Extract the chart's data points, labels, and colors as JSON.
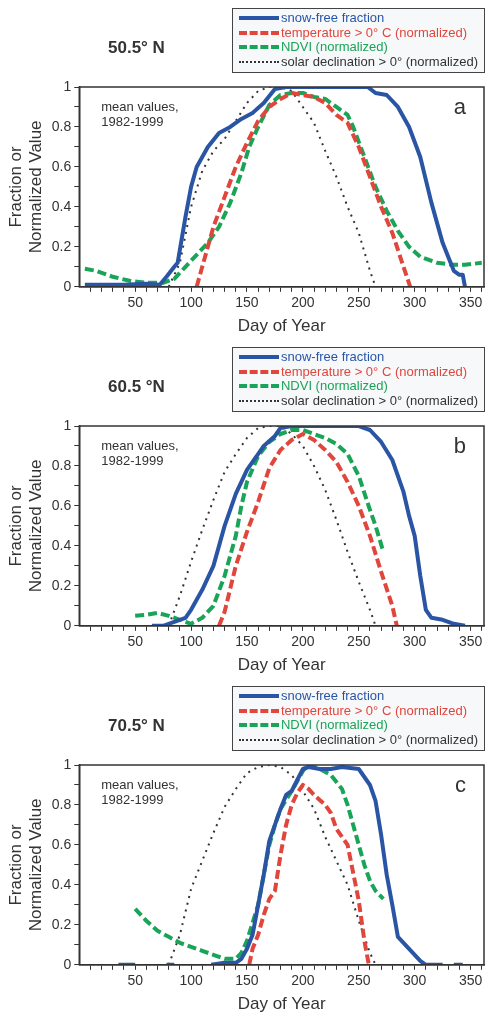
{
  "chart_data": [
    {
      "type": "line",
      "title": "50.5° N",
      "xlabel": "Day of Year",
      "ylabel": "Fraction or\nNormalized Value",
      "legend": "top right",
      "marker": "none",
      "grid": false,
      "xlim": [
        0,
        362
      ],
      "xticks": [
        {
          "value": 10,
          "label": null
        },
        {
          "value": 20,
          "label": null
        },
        {
          "value": 30,
          "label": null
        },
        {
          "value": 40,
          "label": null
        },
        50,
        {
          "value": 60,
          "label": null
        },
        {
          "value": 70,
          "label": null
        },
        {
          "value": 80,
          "label": null
        },
        {
          "value": 90,
          "label": null
        },
        100,
        {
          "value": 110,
          "label": null
        },
        {
          "value": 120,
          "label": null
        },
        {
          "value": 130,
          "label": null
        },
        {
          "value": 140,
          "label": null
        },
        150,
        {
          "value": 160,
          "label": null
        },
        {
          "value": 170,
          "label": null
        },
        {
          "value": 180,
          "label": null
        },
        {
          "value": 190,
          "label": null
        },
        200,
        {
          "value": 210,
          "label": null
        },
        {
          "value": 220,
          "label": null
        },
        {
          "value": 230,
          "label": null
        },
        {
          "value": 240,
          "label": null
        },
        250,
        {
          "value": 260,
          "label": null
        },
        {
          "value": 270,
          "label": null
        },
        {
          "value": 280,
          "label": null
        },
        {
          "value": 290,
          "label": null
        },
        300,
        {
          "value": 310,
          "label": null
        },
        {
          "value": 320,
          "label": null
        },
        {
          "value": 330,
          "label": null
        },
        {
          "value": 340,
          "label": null
        },
        350,
        {
          "value": 360,
          "label": null
        }
      ],
      "ylim": [
        0,
        1
      ],
      "yticks": [
        0,
        {
          "value": 0.1,
          "label": null
        },
        0.2,
        {
          "value": 0.3,
          "label": null
        },
        0.4,
        {
          "value": 0.5,
          "label": null
        },
        0.6,
        {
          "value": 0.7,
          "label": null
        },
        0.8,
        {
          "value": 0.9,
          "label": null
        },
        1
      ],
      "annotations": [
        "mean values,\n1982-1999",
        "a"
      ],
      "series": [
        {
          "name": "snow-free fraction",
          "color": "#2a55a5",
          "line_style": "solid",
          "x": [
            5,
            20,
            40,
            60,
            72,
            78,
            85,
            88,
            95,
            100,
            105,
            115,
            125,
            135,
            145,
            155,
            165,
            175,
            185,
            200,
            250,
            258,
            265,
            275,
            285,
            295,
            305,
            315,
            325,
            335,
            340,
            343,
            345
          ],
          "values": [
            0.01,
            0.01,
            0.01,
            0.015,
            0.01,
            0.05,
            0.1,
            0.12,
            0.35,
            0.5,
            0.6,
            0.7,
            0.77,
            0.8,
            0.84,
            0.87,
            0.92,
            0.99,
            1,
            1,
            1,
            1,
            0.97,
            0.96,
            0.9,
            0.8,
            0.65,
            0.42,
            0.22,
            0.08,
            0.06,
            0.06,
            0
          ]
        },
        {
          "name": "temperature > 0° C (normalized)",
          "color": "#e0463c",
          "line_style": "dashed",
          "x": [
            105,
            110,
            120,
            130,
            140,
            150,
            160,
            170,
            180,
            190,
            200,
            210,
            220,
            230,
            240,
            250,
            260,
            270,
            280,
            290,
            296
          ],
          "values": [
            0,
            0.1,
            0.3,
            0.45,
            0.6,
            0.72,
            0.83,
            0.9,
            0.94,
            0.97,
            0.96,
            0.95,
            0.92,
            0.86,
            0.82,
            0.7,
            0.55,
            0.4,
            0.27,
            0.1,
            0
          ]
        },
        {
          "name": "NDVI (normalized)",
          "color": "#1aa457",
          "line_style": "dashed",
          "x": [
            5,
            15,
            30,
            45,
            60,
            75,
            85,
            95,
            105,
            115,
            125,
            135,
            145,
            152,
            160,
            170,
            180,
            190,
            200,
            210,
            220,
            230,
            240,
            245,
            255,
            265,
            275,
            285,
            295,
            305,
            320,
            335,
            345,
            360
          ],
          "values": [
            0.09,
            0.08,
            0.05,
            0.03,
            0.02,
            0.02,
            0.04,
            0.1,
            0.16,
            0.22,
            0.3,
            0.42,
            0.57,
            0.7,
            0.8,
            0.91,
            0.96,
            0.97,
            0.97,
            0.95,
            0.94,
            0.9,
            0.86,
            0.8,
            0.65,
            0.5,
            0.38,
            0.28,
            0.2,
            0.15,
            0.12,
            0.11,
            0.11,
            0.12
          ]
        },
        {
          "name": "solar declination > 0° (normalized)",
          "color": "#333333",
          "line_style": "dotted",
          "x": [
            80,
            90,
            100,
            110,
            120,
            130,
            140,
            150,
            160,
            170,
            180,
            190,
            200,
            210,
            220,
            230,
            240,
            250,
            260,
            265
          ],
          "values": [
            0,
            0.12,
            0.4,
            0.58,
            0.68,
            0.74,
            0.83,
            0.92,
            0.98,
            1,
            1,
            0.98,
            0.9,
            0.82,
            0.68,
            0.55,
            0.4,
            0.27,
            0.08,
            0
          ]
        }
      ]
    },
    {
      "type": "line",
      "title": "60.5 °N",
      "xlabel": "Day of Year",
      "ylabel": "Fraction or\nNormalized Value",
      "legend": "top right",
      "marker": "none",
      "grid": false,
      "xlim": [
        0,
        362
      ],
      "xticks": [
        {
          "value": 10,
          "label": null
        },
        {
          "value": 20,
          "label": null
        },
        {
          "value": 30,
          "label": null
        },
        {
          "value": 40,
          "label": null
        },
        50,
        {
          "value": 60,
          "label": null
        },
        {
          "value": 70,
          "label": null
        },
        {
          "value": 80,
          "label": null
        },
        {
          "value": 90,
          "label": null
        },
        100,
        {
          "value": 110,
          "label": null
        },
        {
          "value": 120,
          "label": null
        },
        {
          "value": 130,
          "label": null
        },
        {
          "value": 140,
          "label": null
        },
        150,
        {
          "value": 160,
          "label": null
        },
        {
          "value": 170,
          "label": null
        },
        {
          "value": 180,
          "label": null
        },
        {
          "value": 190,
          "label": null
        },
        200,
        {
          "value": 210,
          "label": null
        },
        {
          "value": 220,
          "label": null
        },
        {
          "value": 230,
          "label": null
        },
        {
          "value": 240,
          "label": null
        },
        250,
        {
          "value": 260,
          "label": null
        },
        {
          "value": 270,
          "label": null
        },
        {
          "value": 280,
          "label": null
        },
        {
          "value": 290,
          "label": null
        },
        300,
        {
          "value": 310,
          "label": null
        },
        {
          "value": 320,
          "label": null
        },
        {
          "value": 330,
          "label": null
        },
        {
          "value": 340,
          "label": null
        },
        350,
        {
          "value": 360,
          "label": null
        }
      ],
      "ylim": [
        0,
        1
      ],
      "yticks": [
        0,
        {
          "value": 0.1,
          "label": null
        },
        0.2,
        {
          "value": 0.3,
          "label": null
        },
        0.4,
        {
          "value": 0.5,
          "label": null
        },
        0.6,
        {
          "value": 0.7,
          "label": null
        },
        0.8,
        {
          "value": 0.9,
          "label": null
        },
        1
      ],
      "annotations": [
        "mean values,\n1982-1999",
        "b"
      ],
      "series": [
        {
          "name": "snow-free fraction",
          "color": "#2a55a5",
          "line_style": "solid",
          "x": [
            65,
            75,
            85,
            95,
            100,
            110,
            120,
            130,
            140,
            150,
            155,
            165,
            175,
            180,
            190,
            250,
            260,
            270,
            280,
            290,
            295,
            300,
            305,
            310,
            315,
            325,
            335,
            345
          ],
          "values": [
            0,
            0,
            0.02,
            0.04,
            0.08,
            0.18,
            0.3,
            0.5,
            0.66,
            0.78,
            0.82,
            0.9,
            0.95,
            0.99,
            1,
            1,
            0.98,
            0.92,
            0.83,
            0.67,
            0.55,
            0.45,
            0.25,
            0.08,
            0.04,
            0.03,
            0.01,
            0
          ]
        },
        {
          "name": "temperature > 0° C (normalized)",
          "color": "#e0463c",
          "line_style": "dashed",
          "x": [
            125,
            130,
            140,
            150,
            160,
            170,
            180,
            190,
            200,
            210,
            220,
            230,
            240,
            250,
            260,
            270,
            280,
            284
          ],
          "values": [
            0,
            0.07,
            0.3,
            0.47,
            0.62,
            0.79,
            0.88,
            0.93,
            0.96,
            0.93,
            0.88,
            0.82,
            0.72,
            0.6,
            0.45,
            0.27,
            0.1,
            0
          ]
        },
        {
          "name": "NDVI (normalized)",
          "color": "#1aa457",
          "line_style": "dashed",
          "x": [
            50,
            60,
            70,
            80,
            90,
            100,
            110,
            120,
            130,
            140,
            145,
            150,
            160,
            170,
            180,
            190,
            200,
            210,
            220,
            230,
            240,
            250,
            260,
            265,
            272
          ],
          "values": [
            0.05,
            0.055,
            0.065,
            0.05,
            0.03,
            0.01,
            0.04,
            0.1,
            0.25,
            0.45,
            0.6,
            0.72,
            0.85,
            0.92,
            0.96,
            0.98,
            0.98,
            0.96,
            0.94,
            0.91,
            0.86,
            0.75,
            0.58,
            0.5,
            0.37
          ]
        },
        {
          "name": "solar declination > 0° (normalized)",
          "color": "#333333",
          "line_style": "dotted",
          "x": [
            80,
            90,
            100,
            110,
            120,
            130,
            140,
            150,
            160,
            170,
            180,
            190,
            200,
            210,
            220,
            230,
            240,
            250,
            260,
            265
          ],
          "values": [
            0,
            0.15,
            0.32,
            0.48,
            0.63,
            0.77,
            0.86,
            0.94,
            0.99,
            1,
            1,
            0.96,
            0.9,
            0.8,
            0.68,
            0.53,
            0.37,
            0.22,
            0.08,
            0
          ]
        }
      ]
    },
    {
      "type": "line",
      "title": "70.5° N",
      "xlabel": "Day of Year",
      "ylabel": "Fraction or\nNormalized Value",
      "legend": "top right",
      "marker": "none",
      "grid": false,
      "xlim": [
        0,
        362
      ],
      "xticks": [
        {
          "value": 10,
          "label": null
        },
        {
          "value": 20,
          "label": null
        },
        {
          "value": 30,
          "label": null
        },
        {
          "value": 40,
          "label": null
        },
        50,
        {
          "value": 60,
          "label": null
        },
        {
          "value": 70,
          "label": null
        },
        {
          "value": 80,
          "label": null
        },
        {
          "value": 90,
          "label": null
        },
        100,
        {
          "value": 110,
          "label": null
        },
        {
          "value": 120,
          "label": null
        },
        {
          "value": 130,
          "label": null
        },
        {
          "value": 140,
          "label": null
        },
        150,
        {
          "value": 160,
          "label": null
        },
        {
          "value": 170,
          "label": null
        },
        {
          "value": 180,
          "label": null
        },
        {
          "value": 190,
          "label": null
        },
        200,
        {
          "value": 210,
          "label": null
        },
        {
          "value": 220,
          "label": null
        },
        {
          "value": 230,
          "label": null
        },
        {
          "value": 240,
          "label": null
        },
        250,
        {
          "value": 260,
          "label": null
        },
        {
          "value": 270,
          "label": null
        },
        {
          "value": 280,
          "label": null
        },
        {
          "value": 290,
          "label": null
        },
        300,
        {
          "value": 310,
          "label": null
        },
        {
          "value": 320,
          "label": null
        },
        {
          "value": 330,
          "label": null
        },
        {
          "value": 340,
          "label": null
        },
        350,
        {
          "value": 360,
          "label": null
        }
      ],
      "ylim": [
        0,
        1
      ],
      "yticks": [
        0,
        {
          "value": 0.1,
          "label": null
        },
        0.2,
        {
          "value": 0.3,
          "label": null
        },
        0.4,
        {
          "value": 0.5,
          "label": null
        },
        0.6,
        {
          "value": 0.7,
          "label": null
        },
        0.8,
        {
          "value": 0.9,
          "label": null
        },
        1
      ],
      "annotations": [
        "mean values,\n1982-1999",
        "c"
      ],
      "series": [
        {
          "name": "snow-free fraction",
          "color": "#2a55a5",
          "line_style": "solid",
          "x": [
            35,
            50,
            65,
            78,
            85,
            100,
            118,
            130,
            140,
            145,
            150,
            155,
            160,
            165,
            170,
            180,
            185,
            190,
            200,
            205,
            215,
            225,
            235,
            250,
            260,
            265,
            270,
            275,
            280,
            285,
            295,
            305,
            310,
            325,
            330,
            335,
            343
          ],
          "values": [
            0,
            0,
            null,
            0,
            0,
            null,
            0,
            0.01,
            0.01,
            0.03,
            0.08,
            0.15,
            0.3,
            0.45,
            0.62,
            0.78,
            0.85,
            0.87,
            0.98,
            0.99,
            0.98,
            0.98,
            0.99,
            0.98,
            0.9,
            0.82,
            0.65,
            0.45,
            0.3,
            0.14,
            0.08,
            0.02,
            0,
            0,
            null,
            0,
            0
          ]
        },
        {
          "name": "temperature > 0° C (normalized)",
          "color": "#e0463c",
          "line_style": "dashed",
          "x": [
            152,
            155,
            160,
            165,
            170,
            175,
            180,
            185,
            190,
            195,
            200,
            205,
            210,
            220,
            225,
            230,
            240,
            245,
            250,
            255,
            259
          ],
          "values": [
            0,
            0.08,
            0.15,
            0.25,
            0.33,
            0.37,
            0.55,
            0.7,
            0.8,
            0.86,
            0.9,
            0.88,
            0.85,
            0.8,
            0.76,
            0.68,
            0.6,
            0.46,
            0.32,
            0.12,
            0
          ]
        },
        {
          "name": "NDVI (normalized)",
          "color": "#1aa457",
          "line_style": "dashed",
          "x": [
            50,
            60,
            70,
            80,
            90,
            100,
            110,
            120,
            130,
            140,
            145,
            150,
            160,
            165,
            170,
            175,
            180,
            190,
            200,
            205,
            215,
            225,
            235,
            240,
            245,
            250,
            255,
            260,
            265,
            272
          ],
          "values": [
            0.28,
            0.22,
            0.17,
            0.14,
            0.11,
            0.09,
            0.07,
            0.05,
            0.03,
            0.03,
            0.06,
            0.12,
            0.3,
            0.45,
            0.6,
            0.7,
            0.78,
            0.87,
            0.97,
            1,
            0.98,
            0.95,
            0.88,
            0.8,
            0.7,
            0.6,
            0.5,
            0.42,
            0.37,
            0.33
          ]
        },
        {
          "name": "solar declination > 0° (normalized)",
          "color": "#333333",
          "line_style": "dotted",
          "x": [
            80,
            90,
            100,
            110,
            120,
            130,
            140,
            150,
            160,
            170,
            180,
            190,
            200,
            210,
            220,
            230,
            240,
            250,
            260,
            265
          ],
          "values": [
            0,
            0.15,
            0.38,
            0.52,
            0.66,
            0.79,
            0.88,
            0.96,
            0.99,
            1,
            0.99,
            0.95,
            0.87,
            0.78,
            0.64,
            0.52,
            0.4,
            0.22,
            0.06,
            0
          ]
        }
      ]
    }
  ]
}
